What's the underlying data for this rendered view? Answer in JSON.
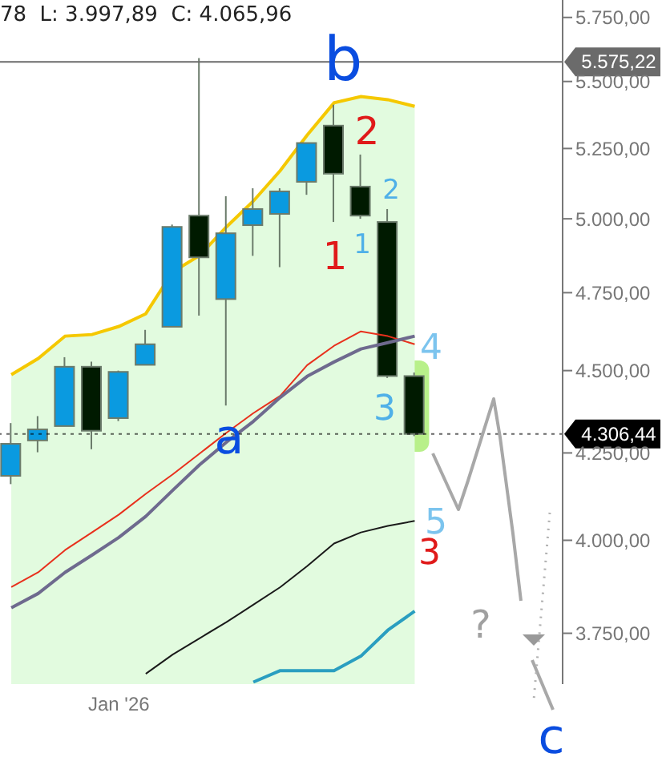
{
  "chart_data": {
    "type": "candlestick",
    "log": true,
    "categories": [
      null,
      null,
      null,
      null,
      "Jan '26",
      null,
      null,
      null,
      null,
      null,
      null,
      null,
      null,
      null,
      null,
      null
    ],
    "ohlc": [
      [
        4183,
        4339,
        4159,
        4277
      ],
      [
        4287,
        4360,
        4252,
        4320
      ],
      [
        4330,
        4542,
        4330,
        4512
      ],
      [
        4512,
        4528,
        4261,
        4316
      ],
      [
        4354,
        4500,
        4345,
        4496
      ],
      [
        4518,
        4629,
        4518,
        4583
      ],
      [
        4639,
        4980,
        4639,
        4972
      ],
      [
        5011,
        5590,
        4675,
        4868
      ],
      [
        4729,
        5079,
        4392,
        4950
      ],
      [
        4978,
        5107,
        4873,
        5034
      ],
      [
        5017,
        5107,
        4835,
        5096
      ],
      [
        5130,
        5270,
        5084,
        5270
      ],
      [
        5334,
        5412,
        4989,
        5159
      ],
      [
        5113,
        5228,
        5000,
        5011
      ],
      [
        4989,
        5034,
        4477,
        4483
      ],
      [
        4483,
        4494,
        4300,
        4306.44
      ]
    ],
    "colors": [
      "#0a9ae0",
      "#0a9ae0",
      "#0a9ae0",
      "#001a00",
      "#0a9ae0",
      "#0a9ae0",
      "#0a9ae0",
      "#001a00",
      "#0a9ae0",
      "#0a9ae0",
      "#0a9ae0",
      "#0a9ae0",
      "#001a00",
      "#001a00",
      "#001a00",
      "#001a00"
    ],
    "series": [
      {
        "type": "area",
        "color": "#f5c800",
        "values": [
          4487,
          4538,
          4609,
          4614,
          4640,
          4681,
          4819,
          4874,
          4972,
          5062,
          5170,
          5299,
          5419,
          5443,
          5431,
          5406
        ]
      },
      {
        "type": "line",
        "color": "#e8301c",
        "values": [
          3872,
          3912,
          3973,
          4022,
          4072,
          4131,
          4187,
          4248,
          4310,
          4369,
          4422,
          4517,
          4578,
          4624,
          4609,
          4583
        ]
      },
      {
        "type": "line",
        "color": "#6e6a8e",
        "values": [
          3817,
          3855,
          3912,
          3959,
          4008,
          4067,
          4141,
          4215,
          4282,
          4344,
          4417,
          4482,
          4527,
          4568,
          4588,
          4609
        ]
      },
      {
        "type": "line",
        "color": "#1a1a1a",
        "values": [
          null,
          null,
          null,
          null,
          null,
          3646,
          3695,
          3737,
          3779,
          3825,
          3872,
          3929,
          3991,
          4022,
          4040,
          4054
        ]
      },
      {
        "type": "line",
        "color": "#2a9ec0",
        "values": [
          null,
          null,
          null,
          null,
          null,
          null,
          null,
          null,
          null,
          3625,
          3654,
          3654,
          3654,
          3691,
          3758,
          3808
        ]
      }
    ],
    "ylim": [
      3620,
      5820
    ],
    "yticks": [
      {
        "value": 3750,
        "label": "3.750,00"
      },
      {
        "value": 4000,
        "label": "4.000,00"
      },
      {
        "value": 4250,
        "label": "4.250,00"
      },
      {
        "value": 4500,
        "label": "4.500,00"
      },
      {
        "value": 4750,
        "label": "4.750,00"
      },
      {
        "value": 5000,
        "label": "5.000,00"
      },
      {
        "value": 5250,
        "label": "5.250,00"
      },
      {
        "value": 5500,
        "label": "5.500,00"
      },
      {
        "value": 5750,
        "label": "5.750,00"
      }
    ],
    "ref_lines": [
      {
        "axis": "y",
        "value": 5575.22,
        "label": "5.575,22",
        "color": "#6b6b6b",
        "line_style": "solid"
      },
      {
        "axis": "y",
        "value": 4306.44,
        "label": "4.306,44",
        "color": "#000000",
        "line_style": "dotted"
      }
    ],
    "annotations": [
      "78  L: 3.997,89  C: 4.065,96",
      "b",
      "a",
      "c",
      "2",
      "1",
      "1",
      "2",
      "3",
      "4",
      "5",
      "3",
      "?"
    ]
  }
}
